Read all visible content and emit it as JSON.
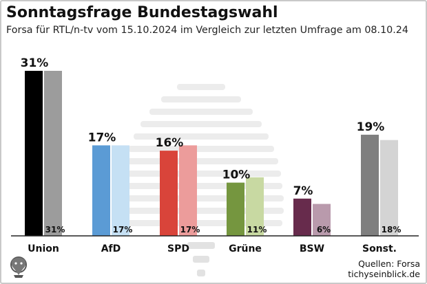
{
  "title": "Sonntagsfrage Bundestagswahl",
  "subtitle": "Forsa für RTL/n-tv vom 15.10.2024 im Vergleich zur letzten Umfrage am 08.10.24",
  "sources": {
    "line1": "Quellen: Forsa",
    "line2": "tichyseinblick.de"
  },
  "chart_data": {
    "type": "bar",
    "title": "Sonntagsfrage Bundestagswahl",
    "subtitle": "Forsa für RTL/n-tv vom 15.10.2024 im Vergleich zur letzten Umfrage am 08.10.24",
    "categories": [
      "Union",
      "AfD",
      "SPD",
      "Grüne",
      "BSW",
      "Sonst."
    ],
    "series": [
      {
        "values": [
          31,
          17,
          16,
          10,
          7,
          19
        ],
        "value_labels": [
          "31%",
          "17%",
          "16%",
          "10%",
          "7%",
          "19%"
        ],
        "colors": [
          "#000000",
          "#5b9bd5",
          "#d9443a",
          "#75963f",
          "#672b4c",
          "#7f7f7f"
        ]
      },
      {
        "values": [
          31,
          17,
          17,
          11,
          6,
          18
        ],
        "value_labels": [
          "31%",
          "17%",
          "17%",
          "11%",
          "6%",
          "18%"
        ],
        "colors": [
          "#9c9c9c",
          "#c5e0f4",
          "#ec9c9b",
          "#c8d9a2",
          "#b99aac",
          "#d4d4d4"
        ]
      }
    ],
    "ylim": [
      0,
      31
    ],
    "grid": false,
    "legend": "none"
  }
}
